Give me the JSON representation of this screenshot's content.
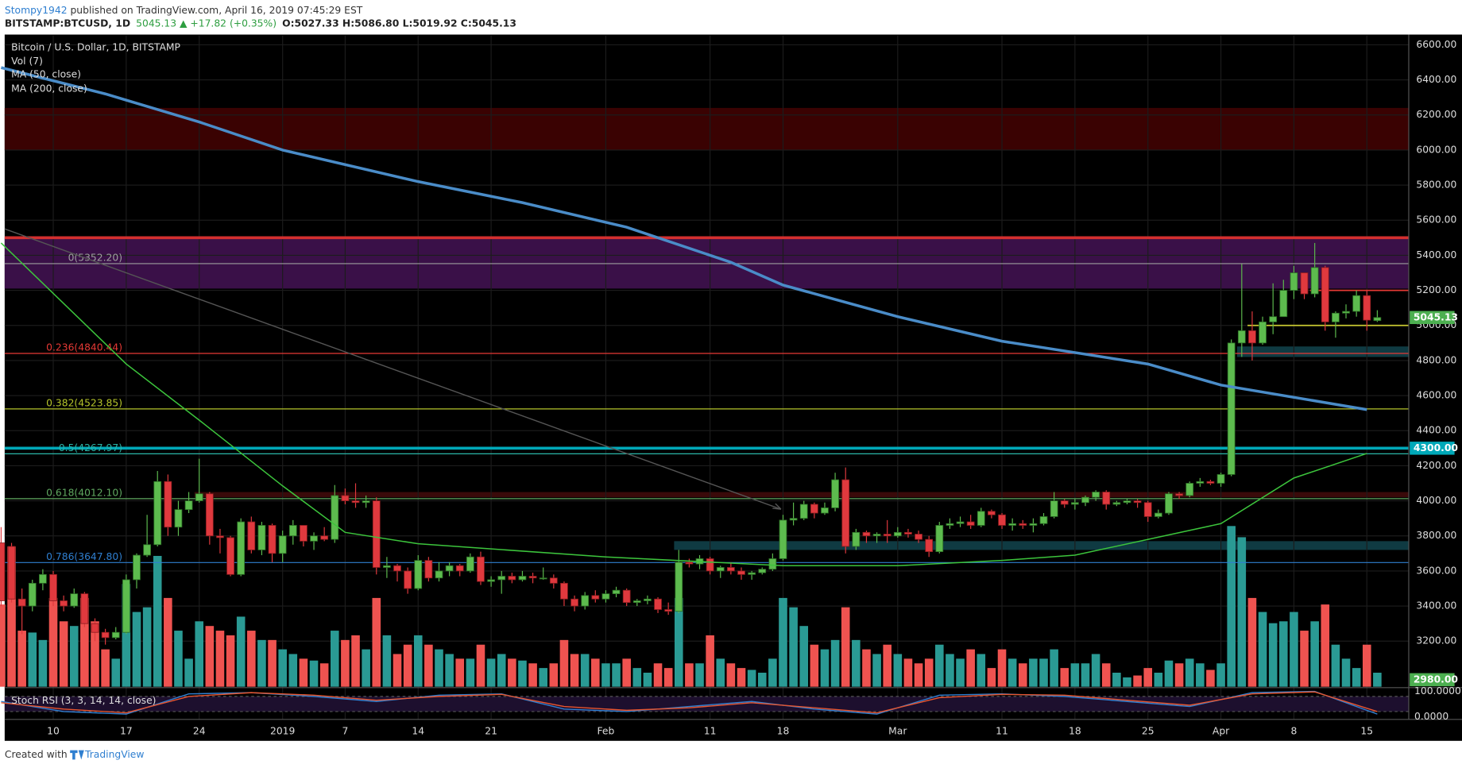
{
  "chart_data": {
    "type": "candlestick",
    "header": {
      "author": "Stompy1942",
      "published": " published on TradingView.com, April 16, 2019 07:45:29 EST",
      "symbol": "BITSTAMP:BTCUSD, 1D",
      "quote": "5045.13 ▲ +17.82 (+0.35%)",
      "ohlc": "O:5027.33 H:5086.80 L:5019.92 C:5045.13"
    },
    "title": "Bitcoin / U.S. Dollar, 1D, BITSTAMP",
    "volume_label": "Vol (7)",
    "footer": {
      "created": "Created with",
      "brand": "TradingView"
    },
    "up_color": "#5dbb4e",
    "down_color": "#e0393e",
    "vol_up_color": "#2a9a94",
    "vol_down_color": "#ef5350",
    "ylim": [
      2940,
      6653
    ],
    "yticks": [
      {
        "value": 3200,
        "label": "3200.00"
      },
      {
        "value": 3400,
        "label": "3400.00"
      },
      {
        "value": 3600,
        "label": "3600.00"
      },
      {
        "value": 3800,
        "label": "3800.00"
      },
      {
        "value": 4000,
        "label": "4000.00"
      },
      {
        "value": 4200,
        "label": "4200.00"
      },
      {
        "value": 4400,
        "label": "4400.00"
      },
      {
        "value": 4600,
        "label": "4600.00"
      },
      {
        "value": 4800,
        "label": "4800.00"
      },
      {
        "value": 5000,
        "label": "5000.00"
      },
      {
        "value": 5200,
        "label": "5200.00"
      },
      {
        "value": 5400,
        "label": "5400.00"
      },
      {
        "value": 5600,
        "label": "5600.00"
      },
      {
        "value": 5800,
        "label": "5800.00"
      },
      {
        "value": 6000,
        "label": "6000.00"
      },
      {
        "value": 6200,
        "label": "6200.00"
      },
      {
        "value": 6400,
        "label": "6400.00"
      },
      {
        "value": 6600,
        "label": "6600.00"
      }
    ],
    "xticks": [
      {
        "value": 5,
        "label": "10"
      },
      {
        "value": 12,
        "label": "17"
      },
      {
        "value": 19,
        "label": "24"
      },
      {
        "value": 27,
        "label": "2019"
      },
      {
        "value": 33,
        "label": "7"
      },
      {
        "value": 40,
        "label": "14"
      },
      {
        "value": 47,
        "label": "21"
      },
      {
        "value": 58,
        "label": "Feb"
      },
      {
        "value": 68,
        "label": "11"
      },
      {
        "value": 75,
        "label": "18"
      },
      {
        "value": 86,
        "label": "Mar"
      },
      {
        "value": 96,
        "label": "11"
      },
      {
        "value": 103,
        "label": "18"
      },
      {
        "value": 110,
        "label": "25"
      },
      {
        "value": 117,
        "label": "Apr"
      },
      {
        "value": 124,
        "label": "8"
      },
      {
        "value": 131,
        "label": "15"
      }
    ],
    "candles": [
      [
        3760,
        3850,
        3400,
        3430,
        88
      ],
      [
        3740,
        3760,
        3420,
        3440,
        150
      ],
      [
        3440,
        3500,
        3240,
        3400,
        60
      ],
      [
        3400,
        3550,
        3370,
        3530,
        58
      ],
      [
        3530,
        3610,
        3490,
        3580,
        50
      ],
      [
        3580,
        3600,
        3400,
        3430,
        95
      ],
      [
        3430,
        3460,
        3370,
        3400,
        70
      ],
      [
        3400,
        3500,
        3390,
        3470,
        65
      ],
      [
        3470,
        3480,
        3280,
        3300,
        95
      ],
      [
        3300,
        3330,
        3200,
        3250,
        70
      ],
      [
        3250,
        3270,
        3180,
        3220,
        40
      ],
      [
        3220,
        3280,
        3210,
        3250,
        30
      ],
      [
        3250,
        3580,
        3240,
        3550,
        110
      ],
      [
        3550,
        3700,
        3500,
        3690,
        80
      ],
      [
        3690,
        3920,
        3680,
        3750,
        85
      ],
      [
        3750,
        4170,
        3740,
        4110,
        140
      ],
      [
        4110,
        4150,
        3800,
        3850,
        95
      ],
      [
        3850,
        4000,
        3800,
        3950,
        60
      ],
      [
        3950,
        4050,
        3930,
        4000,
        30
      ],
      [
        4000,
        4240,
        3990,
        4040,
        70
      ],
      [
        4040,
        4050,
        3750,
        3800,
        65
      ],
      [
        3800,
        3840,
        3700,
        3790,
        60
      ],
      [
        3790,
        3800,
        3570,
        3580,
        55
      ],
      [
        3580,
        3900,
        3570,
        3880,
        75
      ],
      [
        3880,
        3910,
        3700,
        3720,
        60
      ],
      [
        3720,
        3880,
        3690,
        3860,
        50
      ],
      [
        3860,
        3870,
        3650,
        3700,
        50
      ],
      [
        3700,
        3830,
        3650,
        3800,
        40
      ],
      [
        3800,
        3890,
        3750,
        3860,
        35
      ],
      [
        3860,
        3860,
        3740,
        3770,
        30
      ],
      [
        3770,
        3820,
        3720,
        3800,
        28
      ],
      [
        3800,
        3850,
        3770,
        3780,
        25
      ],
      [
        3780,
        4090,
        3760,
        4030,
        60
      ],
      [
        4030,
        4070,
        3980,
        4000,
        50
      ],
      [
        4000,
        4100,
        3960,
        3990,
        55
      ],
      [
        3990,
        4030,
        3960,
        4000,
        40
      ],
      [
        4000,
        4020,
        3580,
        3620,
        95
      ],
      [
        3620,
        3680,
        3560,
        3630,
        55
      ],
      [
        3630,
        3640,
        3540,
        3600,
        35
      ],
      [
        3600,
        3620,
        3470,
        3500,
        45
      ],
      [
        3500,
        3690,
        3490,
        3660,
        55
      ],
      [
        3660,
        3680,
        3540,
        3560,
        45
      ],
      [
        3560,
        3650,
        3540,
        3600,
        40
      ],
      [
        3600,
        3650,
        3570,
        3630,
        35
      ],
      [
        3630,
        3640,
        3570,
        3600,
        30
      ],
      [
        3600,
        3700,
        3590,
        3680,
        30
      ],
      [
        3680,
        3710,
        3520,
        3540,
        45
      ],
      [
        3540,
        3570,
        3510,
        3550,
        30
      ],
      [
        3550,
        3600,
        3470,
        3570,
        35
      ],
      [
        3570,
        3590,
        3530,
        3550,
        30
      ],
      [
        3550,
        3600,
        3540,
        3570,
        28
      ],
      [
        3570,
        3590,
        3530,
        3560,
        25
      ],
      [
        3560,
        3620,
        3550,
        3560,
        20
      ],
      [
        3560,
        3580,
        3500,
        3530,
        25
      ],
      [
        3530,
        3540,
        3400,
        3440,
        50
      ],
      [
        3440,
        3460,
        3370,
        3400,
        35
      ],
      [
        3400,
        3480,
        3380,
        3460,
        35
      ],
      [
        3460,
        3490,
        3420,
        3440,
        30
      ],
      [
        3440,
        3490,
        3420,
        3470,
        25
      ],
      [
        3470,
        3510,
        3450,
        3490,
        25
      ],
      [
        3490,
        3500,
        3400,
        3420,
        30
      ],
      [
        3420,
        3440,
        3400,
        3430,
        20
      ],
      [
        3430,
        3460,
        3410,
        3440,
        15
      ],
      [
        3440,
        3450,
        3360,
        3380,
        25
      ],
      [
        3380,
        3420,
        3350,
        3370,
        20
      ],
      [
        3370,
        3720,
        3360,
        3650,
        95
      ],
      [
        3650,
        3670,
        3620,
        3640,
        25
      ],
      [
        3640,
        3690,
        3610,
        3670,
        25
      ],
      [
        3670,
        3680,
        3580,
        3600,
        55
      ],
      [
        3600,
        3630,
        3560,
        3620,
        30
      ],
      [
        3620,
        3650,
        3580,
        3600,
        25
      ],
      [
        3600,
        3620,
        3550,
        3580,
        20
      ],
      [
        3580,
        3600,
        3550,
        3590,
        18
      ],
      [
        3590,
        3620,
        3580,
        3610,
        15
      ],
      [
        3610,
        3700,
        3600,
        3670,
        30
      ],
      [
        3670,
        3920,
        3660,
        3890,
        95
      ],
      [
        3890,
        3990,
        3860,
        3900,
        85
      ],
      [
        3900,
        4000,
        3890,
        3980,
        65
      ],
      [
        3980,
        3990,
        3900,
        3930,
        45
      ],
      [
        3930,
        3990,
        3920,
        3960,
        40
      ],
      [
        3960,
        4160,
        3940,
        4120,
        50
      ],
      [
        4120,
        4190,
        3700,
        3740,
        85
      ],
      [
        3740,
        3840,
        3720,
        3820,
        50
      ],
      [
        3820,
        3830,
        3760,
        3800,
        40
      ],
      [
        3800,
        3820,
        3760,
        3810,
        35
      ],
      [
        3810,
        3890,
        3760,
        3800,
        45
      ],
      [
        3800,
        3850,
        3790,
        3820,
        35
      ],
      [
        3820,
        3840,
        3790,
        3810,
        30
      ],
      [
        3810,
        3830,
        3760,
        3780,
        25
      ],
      [
        3780,
        3800,
        3680,
        3710,
        30
      ],
      [
        3710,
        3880,
        3700,
        3860,
        45
      ],
      [
        3860,
        3900,
        3840,
        3870,
        35
      ],
      [
        3870,
        3910,
        3850,
        3880,
        30
      ],
      [
        3880,
        3920,
        3840,
        3860,
        40
      ],
      [
        3860,
        3960,
        3850,
        3940,
        35
      ],
      [
        3940,
        3950,
        3900,
        3920,
        20
      ],
      [
        3920,
        3930,
        3840,
        3860,
        40
      ],
      [
        3860,
        3900,
        3830,
        3870,
        30
      ],
      [
        3870,
        3890,
        3840,
        3860,
        25
      ],
      [
        3860,
        3900,
        3820,
        3870,
        30
      ],
      [
        3870,
        3930,
        3860,
        3910,
        30
      ],
      [
        3910,
        4050,
        3900,
        4000,
        40
      ],
      [
        4000,
        4010,
        3960,
        3980,
        20
      ],
      [
        3980,
        4010,
        3950,
        3990,
        25
      ],
      [
        3990,
        4030,
        3970,
        4020,
        25
      ],
      [
        4020,
        4060,
        4000,
        4050,
        35
      ],
      [
        4050,
        4060,
        3950,
        3980,
        25
      ],
      [
        3980,
        4000,
        3970,
        3990,
        15
      ],
      [
        3990,
        4010,
        3980,
        4000,
        10
      ],
      [
        4000,
        4010,
        3960,
        3990,
        12
      ],
      [
        3990,
        4000,
        3880,
        3910,
        20
      ],
      [
        3910,
        3950,
        3900,
        3930,
        15
      ],
      [
        3930,
        4050,
        3920,
        4040,
        28
      ],
      [
        4040,
        4050,
        4010,
        4030,
        25
      ],
      [
        4030,
        4110,
        4020,
        4100,
        30
      ],
      [
        4100,
        4130,
        4080,
        4110,
        25
      ],
      [
        4110,
        4120,
        4090,
        4100,
        18
      ],
      [
        4100,
        4160,
        4080,
        4150,
        25
      ],
      [
        4150,
        4920,
        4140,
        4900,
        172
      ],
      [
        4900,
        5350,
        4820,
        4970,
        160
      ],
      [
        4970,
        5080,
        4800,
        4900,
        95
      ],
      [
        4900,
        5050,
        4890,
        5020,
        80
      ],
      [
        5020,
        5240,
        4950,
        5050,
        68
      ],
      [
        5050,
        5260,
        5050,
        5200,
        70
      ],
      [
        5200,
        5340,
        5150,
        5300,
        80
      ],
      [
        5300,
        5300,
        5150,
        5180,
        60
      ],
      [
        5180,
        5470,
        5160,
        5330,
        70
      ],
      [
        5330,
        5340,
        4970,
        5020,
        88
      ],
      [
        5020,
        5080,
        4930,
        5070,
        45
      ],
      [
        5070,
        5120,
        5040,
        5080,
        30
      ],
      [
        5080,
        5200,
        5050,
        5170,
        20
      ],
      [
        5170,
        5200,
        4970,
        5030,
        45
      ],
      [
        5027.33,
        5086.8,
        5019.92,
        5045.13,
        15
      ]
    ],
    "series": [
      {
        "name": "MA (50, close)",
        "color": "#3cc43c",
        "x": [
          0,
          12,
          19,
          27,
          33,
          40,
          58,
          75,
          86,
          96,
          103,
          117,
          124,
          131
        ],
        "values": [
          5470,
          4780,
          4460,
          4085,
          3820,
          3755,
          3680,
          3630,
          3630,
          3660,
          3690,
          3870,
          4130,
          4270
        ]
      },
      {
        "name": "MA (200, close)",
        "color": "#4a8cc8",
        "x": [
          0,
          10,
          19,
          27,
          40,
          50,
          60,
          70,
          75,
          86,
          96,
          110,
          117,
          131
        ],
        "values": [
          6470,
          6320,
          6160,
          6000,
          5820,
          5700,
          5560,
          5360,
          5230,
          5050,
          4910,
          4780,
          4660,
          4520
        ]
      }
    ],
    "fib_levels": [
      {
        "value": 5352.2,
        "label": "0(5352.20)",
        "color": "#9e9e9e"
      },
      {
        "value": 4840.44,
        "label": "0.236(4840.44)",
        "color": "#e53935"
      },
      {
        "value": 4523.85,
        "label": "0.382(4523.85)",
        "color": "#b5c42a"
      },
      {
        "value": 4267.97,
        "label": "0.5(4267.97)",
        "color": "#2bb5a8"
      },
      {
        "value": 4012.1,
        "label": "0.618(4012.10)",
        "color": "#5fa860"
      },
      {
        "value": 3647.8,
        "label": "0.786(3647.80)",
        "color": "#2f7fd0"
      }
    ],
    "zones": [
      {
        "from": 6000,
        "to": 6240,
        "color": "#3a0202",
        "start": 0
      },
      {
        "from": 5210,
        "to": 5500,
        "color": "#3a1048",
        "start": 0
      },
      {
        "from": 4820,
        "to": 4880,
        "color": "#0f3a42",
        "start": 119
      },
      {
        "from": 3720,
        "to": 3770,
        "color": "#0f3a42",
        "start": 65
      },
      {
        "from": 4020,
        "to": 4050,
        "color": "#3a0a0a",
        "start": 19
      }
    ],
    "lines": [
      {
        "value": 5500,
        "color": "#d32f2f",
        "width": 3,
        "start": 0
      },
      {
        "value": 4300,
        "color": "#00a8b8",
        "width": 3,
        "start": 0
      },
      {
        "value": 5000,
        "color": "#c8c832",
        "width": 1.5,
        "start": 120
      },
      {
        "value": 5200,
        "color": "#e53935",
        "width": 1.5,
        "start": 126
      }
    ],
    "price_labels": [
      {
        "value": 5045.13,
        "label": "5045.13",
        "color": "#4caf50"
      },
      {
        "value": 4300,
        "label": "4300.00",
        "color": "#00a8b8"
      },
      {
        "value": 2980,
        "label": "2980.00",
        "color": "#4caf50"
      }
    ],
    "stoch": {
      "name": "Stoch RSI (3, 3, 14, 14, close)",
      "ylim": [
        0,
        100
      ],
      "yticks": [
        {
          "value": 100,
          "label": "100.0000"
        },
        {
          "value": 0,
          "label": "0.0000"
        }
      ],
      "band": [
        20,
        80
      ],
      "x": [
        0,
        6,
        12,
        18,
        24,
        30,
        36,
        42,
        48,
        54,
        60,
        66,
        72,
        78,
        84,
        90,
        96,
        102,
        108,
        114,
        120,
        126,
        132
      ],
      "k": [
        60,
        20,
        10,
        90,
        95,
        80,
        60,
        85,
        90,
        30,
        20,
        40,
        60,
        30,
        10,
        85,
        90,
        80,
        60,
        40,
        95,
        100,
        10
      ],
      "d": [
        55,
        30,
        15,
        80,
        95,
        85,
        65,
        80,
        88,
        40,
        25,
        35,
        55,
        35,
        15,
        75,
        88,
        85,
        65,
        45,
        90,
        98,
        20
      ],
      "k_color": "#2f7fd0",
      "d_color": "#e8552f"
    }
  }
}
